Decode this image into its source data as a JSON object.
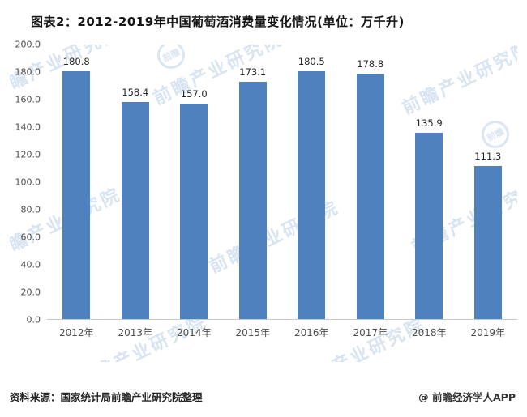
{
  "title": "图表2：2012-2019年中国葡萄酒消费量变化情况(单位：万千升)",
  "chart_data": {
    "type": "bar",
    "title": "图表2：2012-2019年中国葡萄酒消费量变化情况(单位：万千升)",
    "categories": [
      "2012年",
      "2013年",
      "2014年",
      "2015年",
      "2016年",
      "2017年",
      "2018年",
      "2019年"
    ],
    "values": [
      180.8,
      158.4,
      157.0,
      173.1,
      180.5,
      178.8,
      135.9,
      111.3
    ],
    "value_labels": [
      "180.8",
      "158.4",
      "157.0",
      "173.1",
      "180.5",
      "178.8",
      "135.9",
      "111.3"
    ],
    "xlabel": "",
    "ylabel": "",
    "ylim": [
      0,
      200
    ],
    "ytick_step": 20,
    "yticks": [
      "0.0",
      "20.0",
      "40.0",
      "60.0",
      "80.0",
      "100.0",
      "120.0",
      "140.0",
      "160.0",
      "180.0",
      "200.0"
    ],
    "grid": false,
    "legend_position": "none",
    "bar_color": "#4E81BD"
  },
  "watermark": {
    "text": "前瞻产业研究院",
    "logo_text": "前瞻"
  },
  "footer": {
    "source": "资料来源：国家统计局前瞻产业研究院整理",
    "credit": "@ 前瞻经济学人APP"
  },
  "colors": {
    "bar": "#4E81BD",
    "watermark": "#B9CFE8",
    "axis_text": "#4D4D4D"
  }
}
